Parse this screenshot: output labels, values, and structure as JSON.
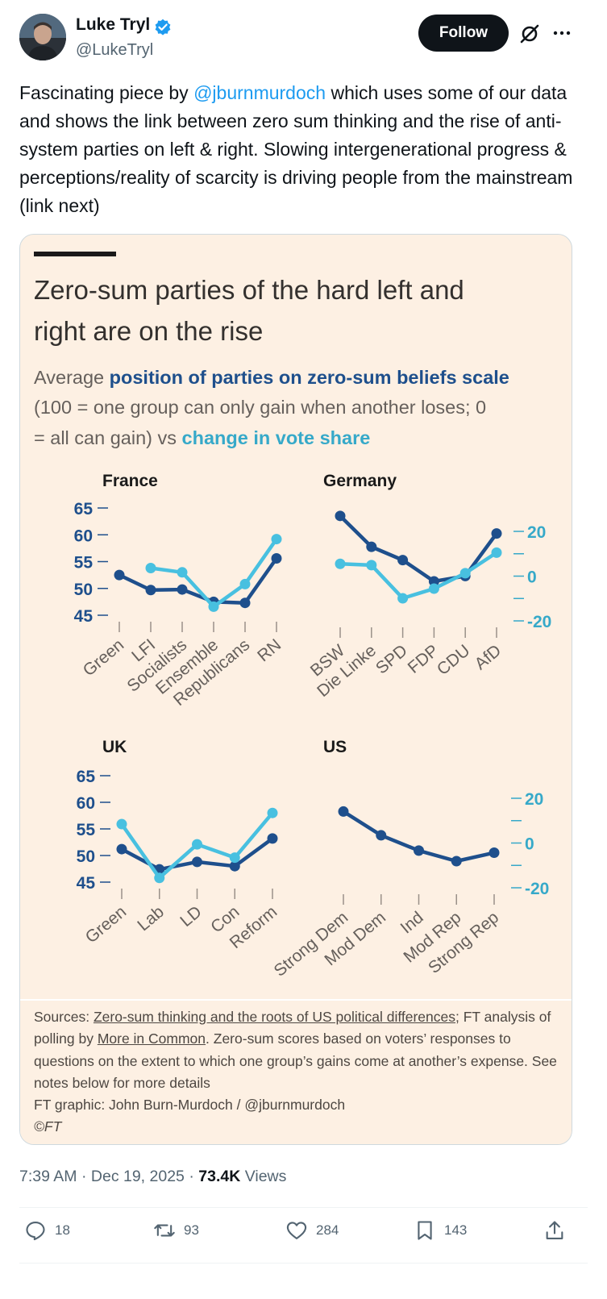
{
  "user": {
    "display_name": "Luke Tryl",
    "handle": "@LukeTryl",
    "follow_label": "Follow"
  },
  "tweet": {
    "text_before": "Fascinating piece by ",
    "mention": "@jburnmurdoch",
    "text_after": " which uses some of our data and shows the link between zero sum thinking and the rise of anti-system parties on left & right. Slowing intergenerational progress & perceptions/reality of scarcity is driving people from the mainstream (link next)"
  },
  "card": {
    "title_line1": "Zero-sum parties of the hard left and",
    "title_line2": "right are on the rise",
    "subtitle_1a": "Average ",
    "subtitle_1b": "position of parties on zero-sum beliefs scale",
    "subtitle_2": "(100 = one group can only gain when another loses; 0",
    "subtitle_3a": "= all can gain) vs ",
    "subtitle_3b": "change in vote share",
    "sources_label": "Sources: ",
    "source_link_1": "Zero-sum thinking and the roots of US political differences",
    "sources_sep": "; FT analysis of polling by ",
    "source_link_2": "More in Common",
    "sources_rest": ". Zero-sum scores based on voters’ responses to questions on the extent to which one group’s gains come at another’s expense. See notes below for more details",
    "credit": "FT graphic: John Burn-Murdoch / @jburnmurdoch",
    "copyright": "©FT"
  },
  "chart_data": [
    {
      "type": "line",
      "title": "France",
      "categories": [
        "Green",
        "LFI",
        "Socialists",
        "Ensemble",
        "Republicans",
        "RN"
      ],
      "ylim": [
        45,
        65
      ],
      "yticks": [
        45,
        50,
        55,
        60,
        65
      ],
      "series": [
        {
          "name": "position of parties on zero-sum beliefs scale",
          "axis": "left",
          "color": "#1e4f8c",
          "values": [
            52.5,
            49.7,
            49.8,
            47.5,
            47.3,
            55.6
          ]
        },
        {
          "name": "change in vote share",
          "axis": "left",
          "color": "#48c0e0",
          "values": [
            null,
            53.8,
            53.0,
            46.6,
            50.8,
            59.2
          ]
        }
      ]
    },
    {
      "type": "line",
      "title": "Germany",
      "categories": [
        "BSW",
        "Die Linke",
        "SPD",
        "FDP",
        "CDU",
        "AfD"
      ],
      "y2lim": [
        -20,
        20
      ],
      "y2ticks": [
        -20,
        -10,
        0,
        10,
        20
      ],
      "y2ticklabels": [
        "-20",
        "",
        "0",
        "",
        "20"
      ],
      "series": [
        {
          "name": "position of parties on zero-sum beliefs scale",
          "axis": "left",
          "color": "#1e4f8c",
          "values": [
            62.6,
            56.8,
            54.3,
            50.3,
            51.3,
            59.3
          ]
        },
        {
          "name": "change in vote share",
          "axis": "right",
          "color": "#48c0e0",
          "values": [
            5.5,
            4.9,
            -9.9,
            -5.6,
            1.3,
            10.5
          ]
        }
      ]
    },
    {
      "type": "line",
      "title": "UK",
      "categories": [
        "Green",
        "Lab",
        "LD",
        "Con",
        "Reform"
      ],
      "ylim": [
        45,
        65
      ],
      "yticks": [
        45,
        50,
        55,
        60,
        65
      ],
      "series": [
        {
          "name": "position of parties on zero-sum beliefs scale",
          "axis": "left",
          "color": "#1e4f8c",
          "values": [
            51.2,
            47.4,
            48.8,
            48.0,
            53.2
          ]
        },
        {
          "name": "change in vote share",
          "axis": "left",
          "color": "#48c0e0",
          "values": [
            55.9,
            45.8,
            52.1,
            49.6,
            58.0
          ]
        }
      ]
    },
    {
      "type": "line",
      "title": "US",
      "categories": [
        "Strong Dem",
        "Mod Dem",
        "Ind",
        "Mod Rep",
        "Strong Rep"
      ],
      "y2lim": [
        -20,
        20
      ],
      "y2ticks": [
        -20,
        -10,
        0,
        10,
        20
      ],
      "y2ticklabels": [
        "-20",
        "",
        "0",
        "",
        "20"
      ],
      "series": [
        {
          "name": "position of parties on zero-sum beliefs scale",
          "axis": "left",
          "color": "#1e4f8c",
          "values": [
            57.3,
            52.8,
            49.9,
            47.9,
            49.5
          ]
        }
      ]
    }
  ],
  "meta": {
    "time": "7:39 AM",
    "sep1": " · ",
    "date": "Dec 19, 2025",
    "sep2": " · ",
    "views_count": "73.4K",
    "views_label": " Views"
  },
  "actions": {
    "replies": "18",
    "reposts": "93",
    "likes": "284",
    "bookmarks": "143"
  }
}
